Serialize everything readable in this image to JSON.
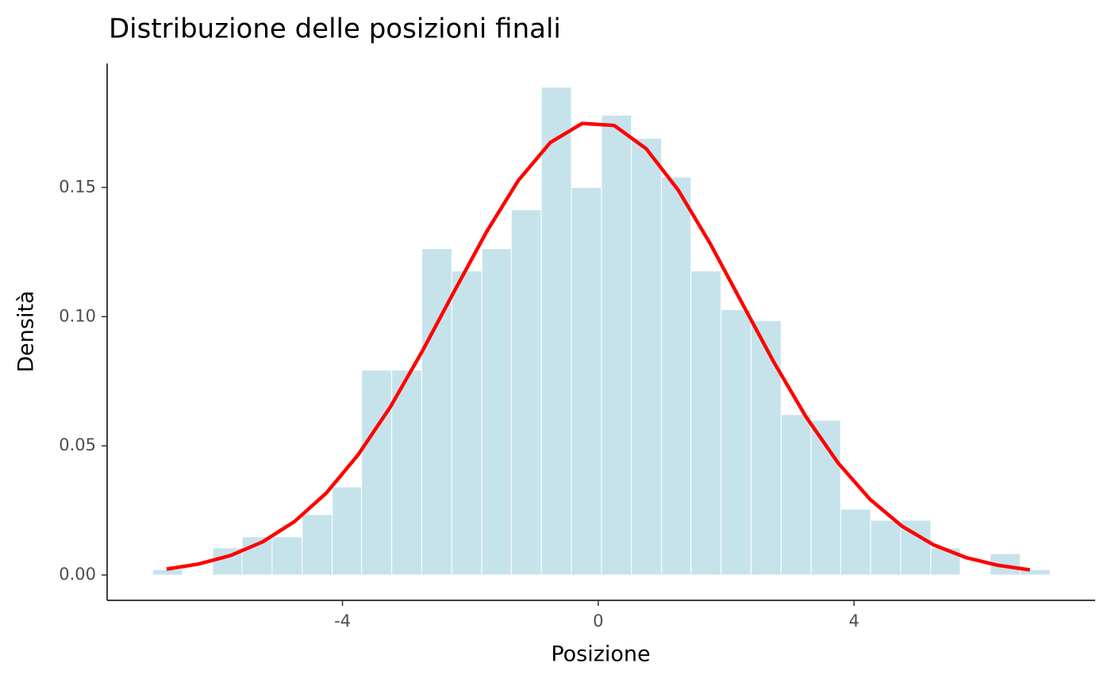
{
  "chart_data": {
    "type": "histogram",
    "title": "Distribuzione delle posizioni finali",
    "xlabel": "Posizione",
    "ylabel": "Densità",
    "bins": [
      -6.97,
      -6.5,
      -6.03,
      -5.57,
      -5.1,
      -4.63,
      -4.16,
      -3.7,
      -3.23,
      -2.76,
      -2.29,
      -1.82,
      -1.36,
      -0.89,
      -0.42,
      0.05,
      0.52,
      0.99,
      1.45,
      1.92,
      2.39,
      2.86,
      3.33,
      3.79,
      4.26,
      4.73,
      5.2,
      5.66,
      6.13,
      6.6,
      7.07
    ],
    "values": [
      0.0021,
      0,
      0.0105,
      0.0148,
      0.0148,
      0.0234,
      0.0341,
      0.0793,
      0.0793,
      0.1263,
      0.1177,
      0.1263,
      0.1414,
      0.1888,
      0.15,
      0.178,
      0.169,
      0.154,
      0.1177,
      0.1027,
      0.0984,
      0.0621,
      0.0599,
      0.0255,
      0.0212,
      0.0212,
      0.0105,
      0,
      0.0083,
      0.0021
    ],
    "color": "#c6e3ec",
    "curve": {
      "color": "#ff0000",
      "x": [
        -6.75,
        -6.25,
        -5.75,
        -5.25,
        -4.75,
        -4.25,
        -3.75,
        -3.25,
        -2.75,
        -2.25,
        -1.75,
        -1.25,
        -0.75,
        -0.25,
        0.25,
        0.75,
        1.25,
        1.75,
        2.25,
        2.75,
        3.25,
        3.75,
        4.25,
        4.75,
        5.25,
        5.75,
        6.25,
        6.75
      ],
      "y": [
        0.00228,
        0.00426,
        0.00757,
        0.01282,
        0.0207,
        0.0318,
        0.0467,
        0.0651,
        0.0867,
        0.1099,
        0.1327,
        0.1527,
        0.1674,
        0.1748,
        0.174,
        0.165,
        0.149,
        0.1283,
        0.1052,
        0.0822,
        0.0612,
        0.0434,
        0.0293,
        0.0189,
        0.0116,
        0.00677,
        0.00377,
        0.002
      ]
    },
    "xlim": [
      -7.68,
      7.77
    ],
    "ylim": [
      -0.0098,
      0.198
    ],
    "xticks": [
      -4,
      0,
      4
    ],
    "yticks": [
      {
        "value": 0,
        "label": "0.00"
      },
      0.05,
      {
        "value": 0.1,
        "label": "0.10"
      },
      0.15
    ]
  }
}
